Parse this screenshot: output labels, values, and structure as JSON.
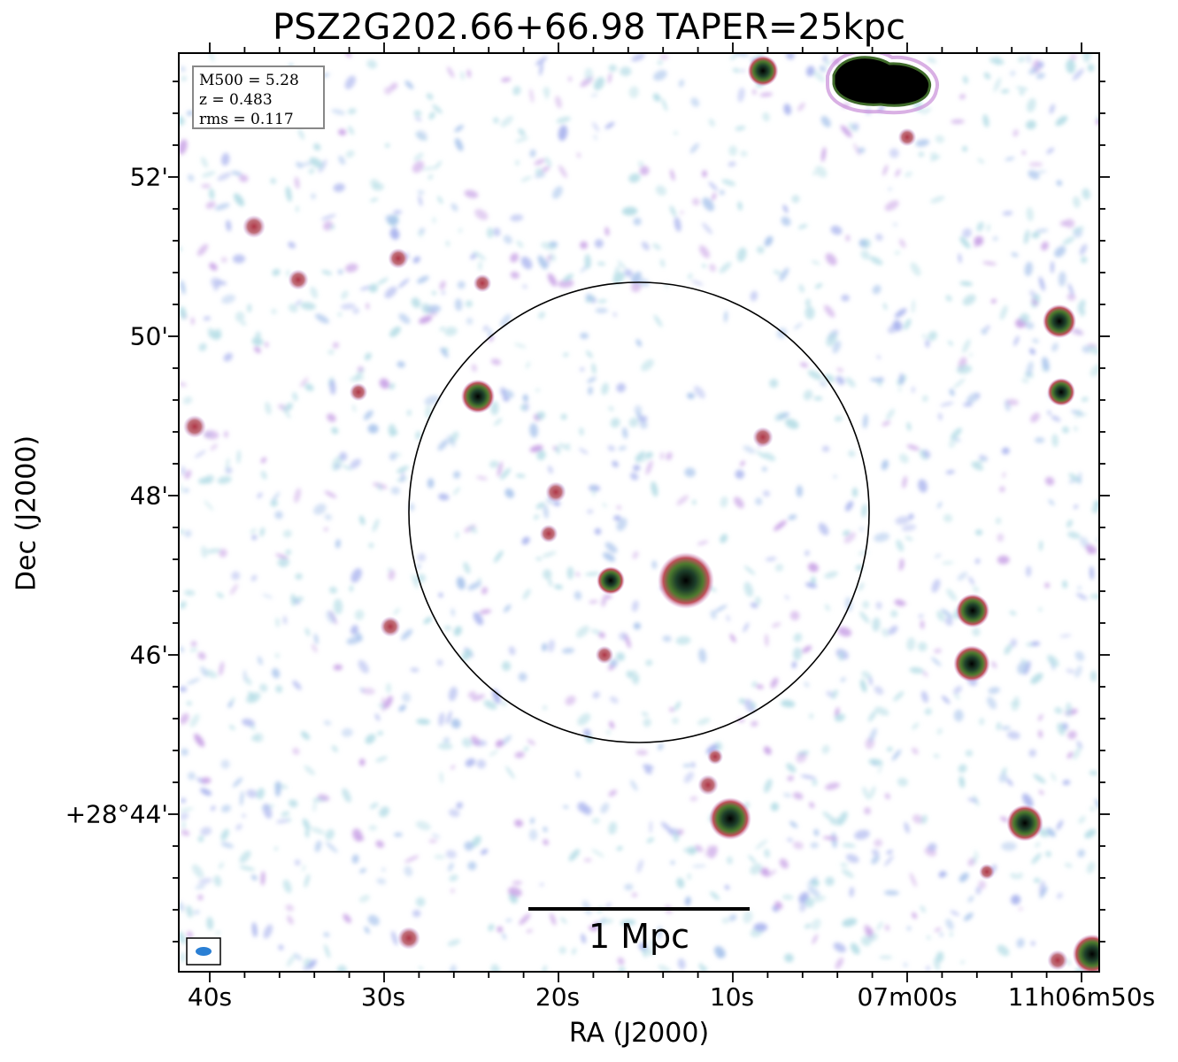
{
  "figure": {
    "title": "PSZ2G202.66+66.98 TAPER=25kpc",
    "xlabel": "RA (J2000)",
    "ylabel": "Dec (J2000)",
    "info": [
      "M500 = 5.28",
      "z = 0.483",
      "rms = 0.117"
    ],
    "scalebar_label": "1 Mpc",
    "x_ticks": [
      "40s",
      "30s",
      "20s",
      "10s",
      "07m00s",
      "11h06m50s"
    ],
    "y_ticks": [
      "52'",
      "50'",
      "48'",
      "46'",
      "+28°44'"
    ]
  },
  "chart_data": {
    "type": "heatmap",
    "title": "PSZ2G202.66+66.98 TAPER=25kpc",
    "xlabel": "RA (J2000)",
    "ylabel": "Dec (J2000)",
    "x_tick_labels": [
      "40s",
      "30s",
      "20s",
      "10s",
      "07m00s",
      "11h06m50s"
    ],
    "y_tick_labels": [
      "52'",
      "50'",
      "48'",
      "46'",
      "+28°44'"
    ],
    "annotations": [
      "M500 = 5.28",
      "z = 0.483",
      "rms = 0.117",
      "1 Mpc"
    ],
    "colormap": [
      "#ffffff",
      "#b5dde6",
      "#a9b3ee",
      "#c98fd9",
      "#c0505a",
      "#3f6a2a",
      "#000000"
    ]
  }
}
